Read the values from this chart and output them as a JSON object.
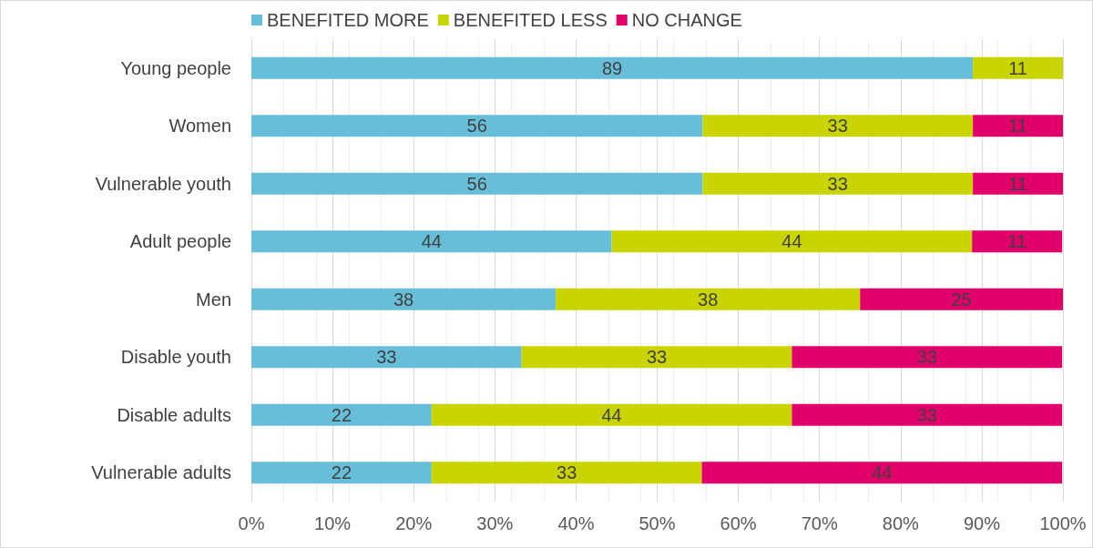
{
  "chart_data": {
    "type": "bar",
    "orientation": "horizontal",
    "stacked": true,
    "categories": [
      "Young people",
      "Women",
      "Vulnerable youth",
      "Adult people",
      "Men",
      "Disable youth",
      "Disable adults",
      "Vulnerable adults"
    ],
    "series": [
      {
        "name": "BENEFITED MORE",
        "color": "#67bed9",
        "values": [
          88.9,
          55.6,
          55.6,
          44.4,
          37.5,
          33.3,
          22.2,
          22.2
        ],
        "value_labels": [
          "89",
          "56",
          "56",
          "44",
          "38",
          "33",
          "22",
          "22"
        ]
      },
      {
        "name": "BENEFITED LESS",
        "color": "#c9d400",
        "values": [
          11.1,
          33.3,
          33.3,
          44.4,
          37.5,
          33.3,
          44.4,
          33.3
        ],
        "value_labels": [
          "11",
          "33",
          "33",
          "44",
          "38",
          "33",
          "44",
          "33"
        ]
      },
      {
        "name": "NO CHANGE",
        "color": "#e2006a",
        "values": [
          null,
          11.1,
          11.1,
          11.1,
          25,
          33.3,
          33.3,
          44.4
        ],
        "value_labels": [
          null,
          "11",
          "11",
          "11",
          "25",
          "33",
          "33",
          "44"
        ]
      }
    ],
    "xlim": [
      0,
      100
    ],
    "xticks": [
      {
        "value": 0,
        "label": "0%"
      },
      {
        "value": 10,
        "label": "10%"
      },
      {
        "value": 20,
        "label": "20%"
      },
      {
        "value": 30,
        "label": "30%"
      },
      {
        "value": 40,
        "label": "40%"
      },
      {
        "value": 50,
        "label": "50%"
      },
      {
        "value": 60,
        "label": "60%"
      },
      {
        "value": 70,
        "label": "70%"
      },
      {
        "value": 80,
        "label": "80%"
      },
      {
        "value": 90,
        "label": "90%"
      },
      {
        "value": 100,
        "label": "100%"
      }
    ],
    "grid": "x",
    "legend": "top"
  }
}
